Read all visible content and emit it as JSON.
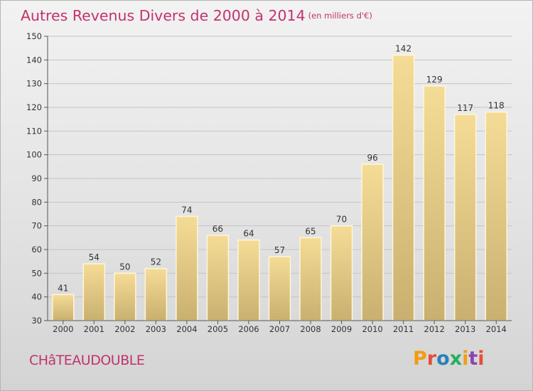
{
  "header": {
    "title": "Autres Revenus Divers de 2000 à 2014",
    "unit": "(en milliers d'€)"
  },
  "footer": {
    "commune": "CHâTEAUDOUBLE",
    "logo_text": "Proxiti",
    "logo_colors": [
      "#f39c12",
      "#e74c3c",
      "#2980b9",
      "#27ae60",
      "#f39c12",
      "#8e44ad",
      "#e74c3c"
    ]
  },
  "colors": {
    "bar_top": "#f5dc96",
    "bar_bottom": "#c9b070",
    "accent": "#c2326e"
  },
  "chart_data": {
    "type": "bar",
    "categories": [
      "2000",
      "2001",
      "2002",
      "2003",
      "2004",
      "2005",
      "2006",
      "2007",
      "2008",
      "2009",
      "2010",
      "2011",
      "2012",
      "2013",
      "2014"
    ],
    "values": [
      41,
      54,
      50,
      52,
      74,
      66,
      64,
      57,
      65,
      70,
      96,
      142,
      129,
      117,
      118
    ],
    "title": "Autres Revenus Divers de 2000 à 2014",
    "xlabel": "",
    "ylabel": "",
    "ylim": [
      30,
      150
    ],
    "yticks": [
      30,
      40,
      50,
      60,
      70,
      80,
      90,
      100,
      110,
      120,
      130,
      140,
      150
    ],
    "grid": true,
    "data_labels": true
  }
}
